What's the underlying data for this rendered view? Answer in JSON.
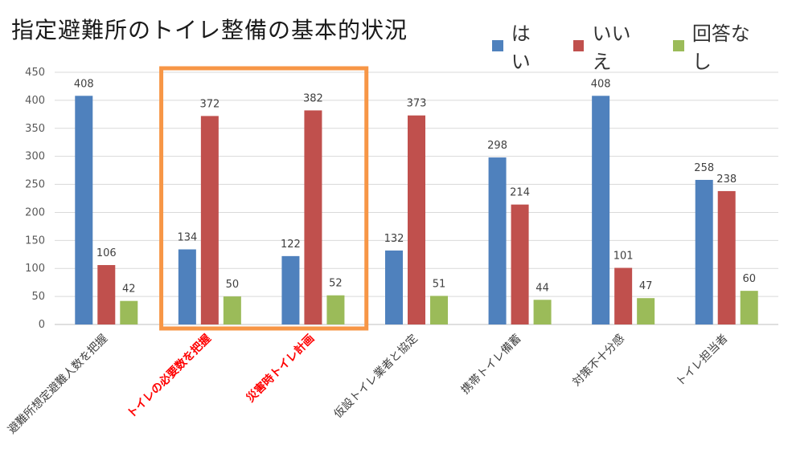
{
  "chart_data": {
    "type": "bar",
    "title": "指定避難所のトイレ整備の基本的状況",
    "categories": [
      "避難所想定避難人数を把握",
      "トイレの必要数を把握",
      "災害時トイレ計画",
      "仮設トイレ業者と協定",
      "携帯トイレ備蓄",
      "対策不十分感",
      "トイレ担当者"
    ],
    "highlighted_categories": [
      "トイレの必要数を把握",
      "災害時トイレ計画"
    ],
    "series": [
      {
        "name": "はい",
        "color": "#4f81bd",
        "values": [
          408,
          134,
          122,
          132,
          298,
          408,
          258
        ]
      },
      {
        "name": "いいえ",
        "color": "#c0504d",
        "values": [
          106,
          372,
          382,
          373,
          214,
          101,
          238
        ]
      },
      {
        "name": "回答なし",
        "color": "#9bbb59",
        "values": [
          42,
          50,
          52,
          51,
          44,
          47,
          60
        ]
      }
    ],
    "ylim": [
      0,
      450
    ],
    "yticks": [
      0,
      50,
      100,
      150,
      200,
      250,
      300,
      350,
      400,
      450
    ],
    "grid": true,
    "legend_position": "top-right",
    "highlight_color": "#f79646"
  }
}
